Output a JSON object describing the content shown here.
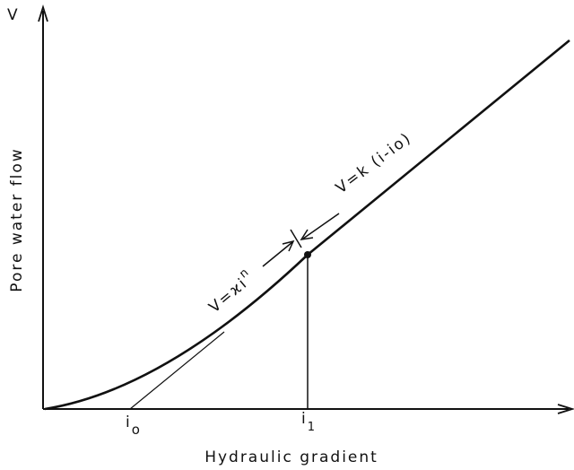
{
  "y_axis_symbol": "V",
  "y_axis_label": "Pore water flow",
  "x_axis_label": "Hydraulic gradient",
  "tick_i0": {
    "main": "i",
    "sub": "o"
  },
  "tick_i1": {
    "main": "i",
    "sub": "1"
  },
  "linear_law": "V=k (i-io)",
  "power_law": {
    "main": "V=ϰi",
    "sup": "n"
  }
}
